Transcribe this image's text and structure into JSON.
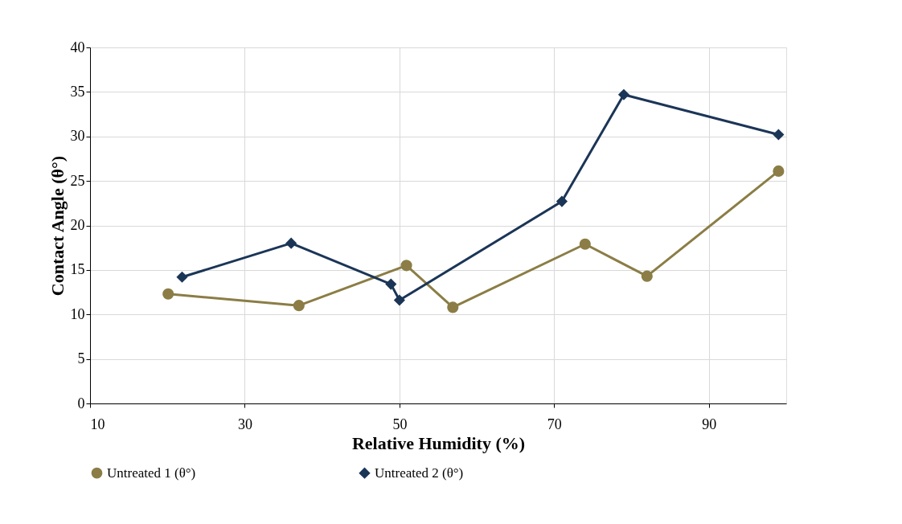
{
  "chart_data": {
    "type": "line",
    "xlabel": "Relative Humidity (%)",
    "ylabel": "Contact Angle (θ°)",
    "xlim": [
      10,
      100
    ],
    "xticks": [
      10,
      30,
      50,
      70,
      90
    ],
    "ylim": [
      0,
      40
    ],
    "yticks": [
      0,
      5,
      10,
      15,
      20,
      25,
      30,
      35,
      40
    ],
    "grid": true,
    "legend": "bottom",
    "series": [
      {
        "name": "Untreated 1 (θ°)",
        "color": "#8b7d45",
        "marker": "circle",
        "x": [
          20.1,
          37,
          50.9,
          56.9,
          74,
          82,
          99
        ],
        "values": [
          12.3,
          11.0,
          15.5,
          10.8,
          17.9,
          14.3,
          26.1
        ]
      },
      {
        "name": "Untreated 2 (θ°)",
        "color": "#1b3557",
        "marker": "diamond",
        "x": [
          21.9,
          36,
          48.9,
          50,
          71,
          79,
          99
        ],
        "values": [
          14.2,
          18.0,
          13.4,
          11.6,
          22.7,
          34.7,
          30.2
        ]
      }
    ]
  }
}
